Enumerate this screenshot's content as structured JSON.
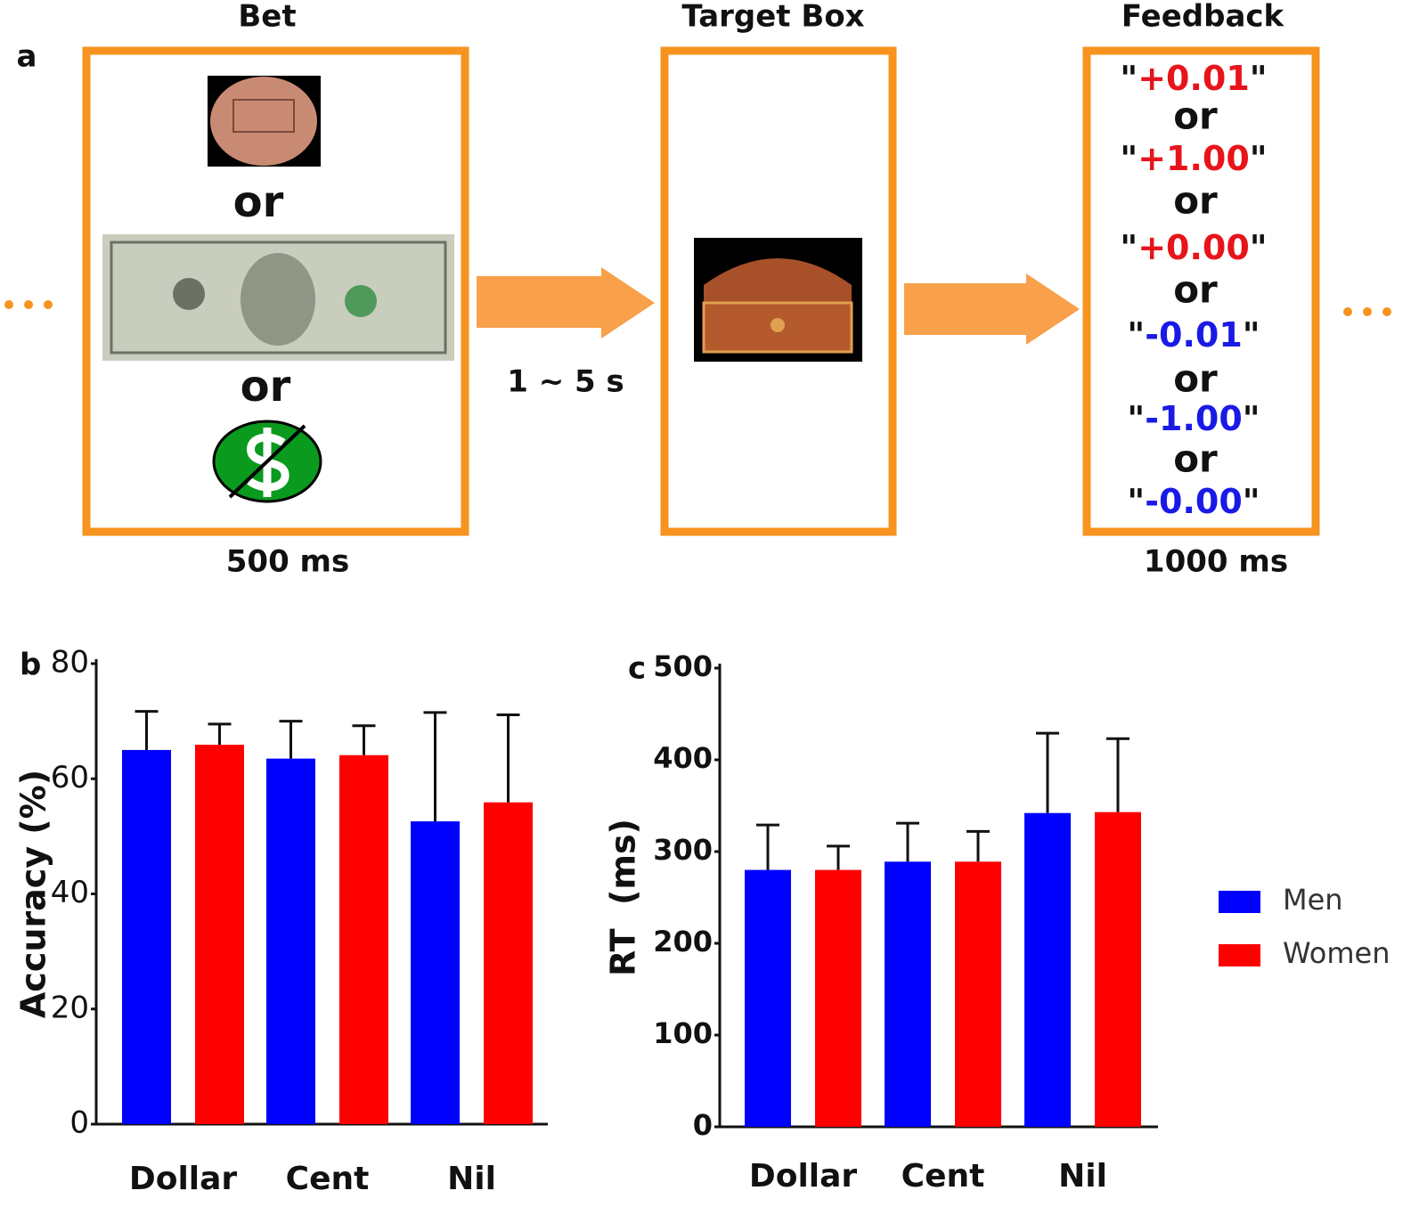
{
  "panel_a": {
    "label": "a",
    "bet": {
      "title": "Bet",
      "or": [
        "or",
        "or"
      ],
      "duration": "500 ms"
    },
    "interval": "1 ~ 5 s",
    "target": {
      "title": "Target Box"
    },
    "feedback": {
      "title": "Feedback",
      "quote": "\"",
      "items": [
        {
          "value": "+0.01",
          "color": "#e8141b"
        },
        {
          "value": "+1.00",
          "color": "#e8141b"
        },
        {
          "value": "+0.00",
          "color": "#e8141b"
        },
        {
          "value": "-0.01",
          "color": "#1a1ae6"
        },
        {
          "value": "-1.00",
          "color": "#1a1ae6"
        },
        {
          "value": "-0.00",
          "color": "#1a1ae6"
        }
      ],
      "or": [
        "or",
        "or",
        "or",
        "or",
        "or"
      ],
      "duration": "1000 ms"
    }
  },
  "chart_data": [
    {
      "type": "bar",
      "panel_label": "b",
      "y_label": "Accuracy (%)",
      "categories": [
        "Dollar",
        "Cent",
        "Nil"
      ],
      "series": [
        {
          "color": "#0000ff",
          "values": [
            65.0,
            63.5,
            52.6
          ],
          "errors": [
            6.7,
            6.5,
            18.9
          ]
        },
        {
          "color": "#ff0000",
          "values": [
            65.9,
            64.1,
            55.9
          ],
          "errors": [
            3.6,
            5.1,
            15.2
          ]
        }
      ],
      "ylim": [
        0,
        80
      ],
      "yticks": [
        0,
        20,
        40,
        60,
        80
      ]
    },
    {
      "type": "bar",
      "panel_label": "c",
      "y_label": "RT  (ms)",
      "categories": [
        "Dollar",
        "Cent",
        "Nil"
      ],
      "series": [
        {
          "name": "Men",
          "color": "#0000ff",
          "values": [
            280,
            289,
            342
          ],
          "errors": [
            49,
            42,
            87
          ]
        },
        {
          "name": "Women",
          "color": "#ff0000",
          "values": [
            280,
            289,
            343
          ],
          "errors": [
            26,
            33,
            80
          ]
        }
      ],
      "ylim": [
        0,
        500
      ],
      "yticks": [
        0,
        100,
        200,
        300,
        400,
        500
      ],
      "legend": "right"
    }
  ]
}
